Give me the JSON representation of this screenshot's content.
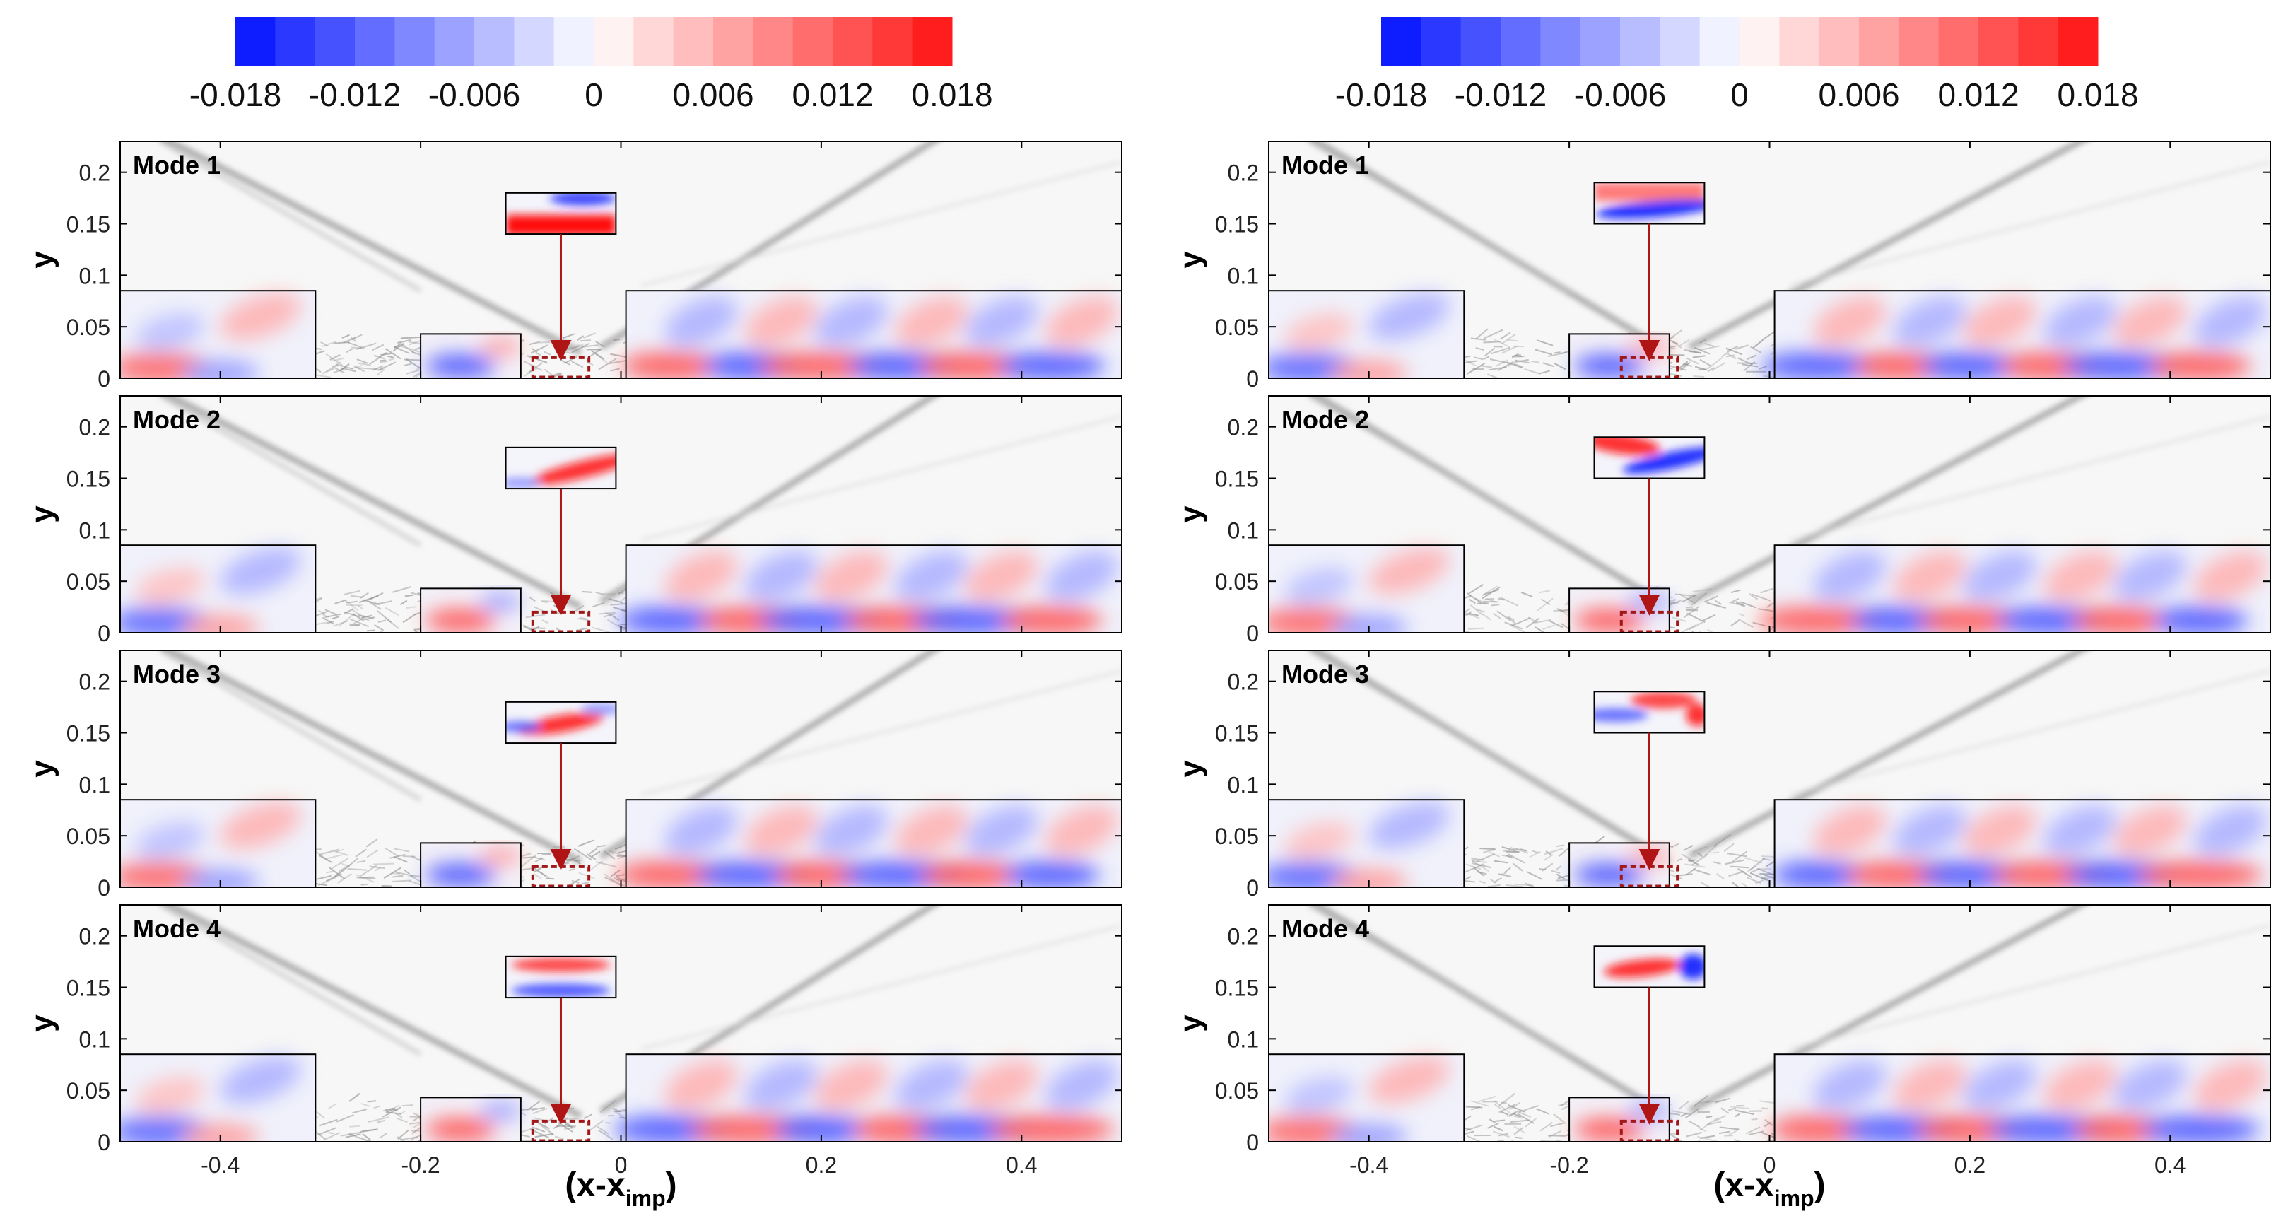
{
  "chart_data": {
    "type": "heatmap",
    "title": "",
    "colorbar": {
      "ticks": [
        "-0.018",
        "-0.012",
        "-0.006",
        "0",
        "0.006",
        "0.012",
        "0.018"
      ],
      "range": [
        -0.018,
        0.018
      ],
      "levels": 18,
      "colors": {
        "negative": "#0010ff",
        "zero": "#ffffff",
        "positive": "#ff1010"
      }
    },
    "xlabel_main": "(x-x",
    "xlabel_sub": "imp",
    "xlabel_close": ")",
    "ylabel": "y",
    "xlim": [
      -0.5,
      0.5
    ],
    "ylim": [
      0,
      0.23
    ],
    "xticks": [
      "-0.4",
      "-0.2",
      "0",
      "0.2",
      "0.4"
    ],
    "yticks": [
      "0",
      "0.05",
      "0.1",
      "0.15",
      "0.2"
    ],
    "columns": [
      {
        "panels": [
          {
            "mode_label": "Mode 1",
            "inset_pattern": "blue_top_red_bottom"
          },
          {
            "mode_label": "Mode 2",
            "inset_pattern": "red_diagonal"
          },
          {
            "mode_label": "Mode 3",
            "inset_pattern": "red_wave"
          },
          {
            "mode_label": "Mode 4",
            "inset_pattern": "red_blue_band"
          }
        ]
      },
      {
        "panels": [
          {
            "mode_label": "Mode 1",
            "inset_pattern": "red_top_blue_bottom"
          },
          {
            "mode_label": "Mode 2",
            "inset_pattern": "red_blue_diagonal"
          },
          {
            "mode_label": "Mode 3",
            "inset_pattern": "red_blue_split"
          },
          {
            "mode_label": "Mode 4",
            "inset_pattern": "red_center_blue_right"
          }
        ]
      }
    ]
  }
}
